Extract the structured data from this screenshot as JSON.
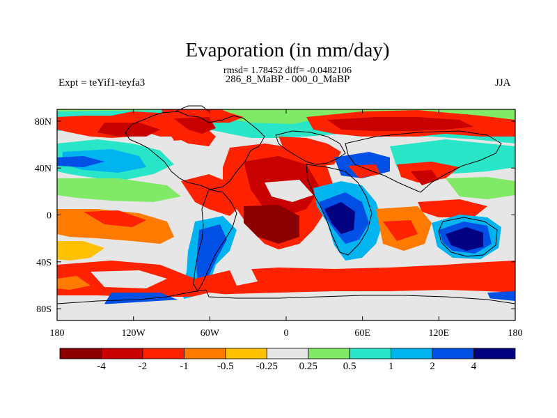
{
  "header": {
    "title": "Evaporation (in mm/day)",
    "stats": "rmsd= 1.78452 diff= -0.0482106",
    "period": "286_8_MaBP - 000_0_MaBP",
    "expt": "Expt = teYif1-teyfa3",
    "season": "JJA"
  },
  "map": {
    "lat_ticks": [
      "80N",
      "40N",
      "0",
      "40S",
      "80S"
    ],
    "lon_ticks": [
      "180",
      "120W",
      "60W",
      "0",
      "60E",
      "120E",
      "180"
    ],
    "lat_values": [
      80,
      40,
      0,
      -40,
      -80
    ],
    "lon_values": [
      -180,
      -120,
      -60,
      0,
      60,
      120,
      180
    ],
    "lat_range": [
      -90,
      90
    ],
    "lon_range": [
      -180,
      180
    ],
    "frame_color": "#000000"
  },
  "colorbar": {
    "labels": [
      "-4",
      "-2",
      "-1",
      "-0.5",
      "-0.25",
      "0.25",
      "0.5",
      "1",
      "2",
      "4"
    ],
    "colors": [
      "#8b0000",
      "#c80000",
      "#ff2200",
      "#ff7a00",
      "#ffc000",
      "#e6e6e6",
      "#80ea66",
      "#2ae6c8",
      "#00b4f0",
      "#0050e6",
      "#000080"
    ]
  },
  "field_regions": [
    {
      "name": "arctic-belt",
      "color": "#80ea66"
    },
    {
      "name": "north-pacific-high",
      "color": "#ff2200"
    },
    {
      "name": "north-america-interior",
      "color": "#c80000"
    },
    {
      "name": "tropical-atlantic-core",
      "color": "#8b0000"
    },
    {
      "name": "southern-ocean-band",
      "color": "#ff2200"
    },
    {
      "name": "antarctica",
      "color": "#e6e6e6"
    },
    {
      "name": "africa-negative-anomaly",
      "color": "#000080"
    },
    {
      "name": "australia-negative-anomaly",
      "color": "#000080"
    },
    {
      "name": "south-america-negative-anomaly",
      "color": "#0050e6"
    }
  ]
}
